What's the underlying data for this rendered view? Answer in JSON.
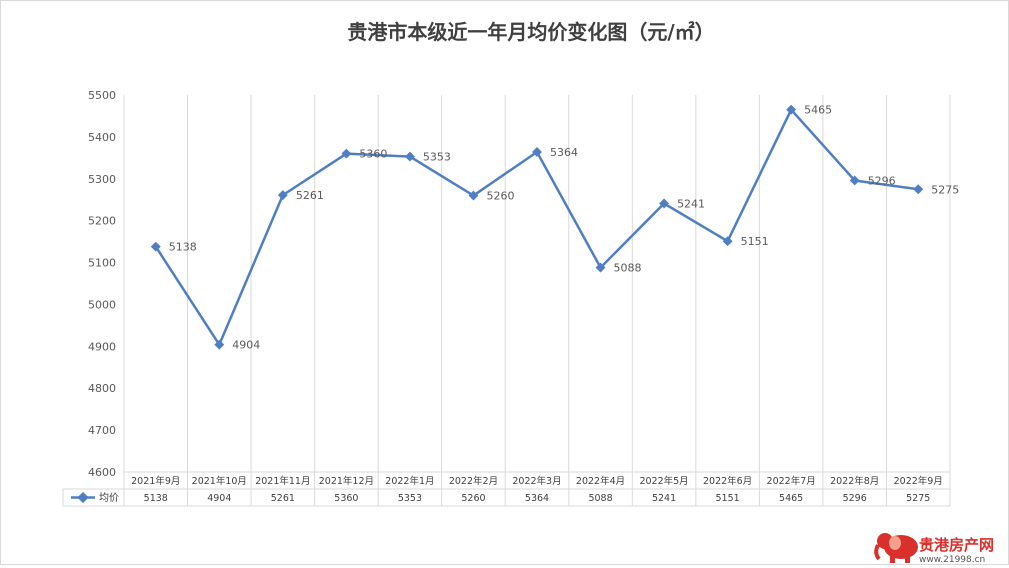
{
  "chart_data": {
    "type": "line",
    "title": "贵港市本级近一年月均价变化图（元/㎡）",
    "categories": [
      "2021年9月",
      "2021年10月",
      "2021年11月",
      "2021年12月",
      "2022年1月",
      "2022年2月",
      "2022年3月",
      "2022年4月",
      "2022年5月",
      "2022年6月",
      "2022年7月",
      "2022年8月",
      "2022年9月"
    ],
    "series": [
      {
        "name": "均价",
        "values": [
          5138,
          4904,
          5261,
          5360,
          5353,
          5260,
          5364,
          5088,
          5241,
          5151,
          5465,
          5296,
          5275
        ]
      }
    ],
    "y_ticks": [
      "4600",
      "4700",
      "4800",
      "4900",
      "5000",
      "5100",
      "5200",
      "5300",
      "5400",
      "5500"
    ],
    "ylim": [
      4600,
      5500
    ],
    "grid": "vertical",
    "legend": "data-table-left",
    "line_color": "#4f7ec2"
  },
  "watermark": {
    "name": "贵港房产网",
    "url": "www.21998.cn"
  }
}
